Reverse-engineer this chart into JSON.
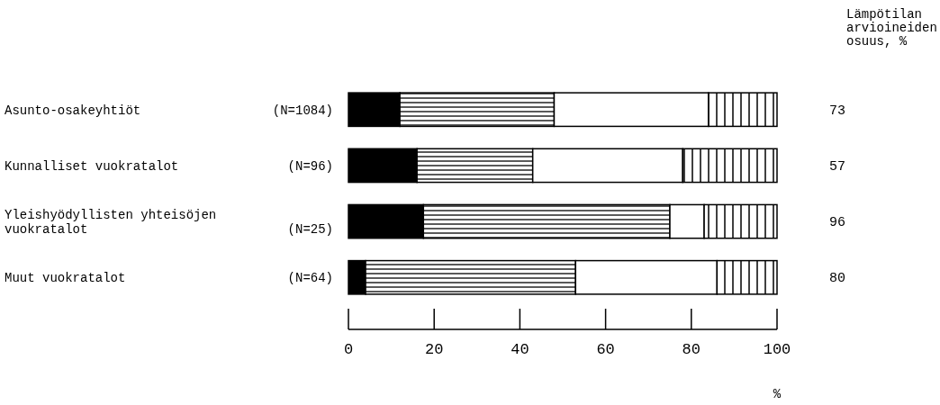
{
  "chart_data": {
    "type": "bar",
    "orientation": "horizontal",
    "stacked": true,
    "categories": [
      "Asunto-osakeyhtiöt (N=1084)",
      "Kunnalliset vuokratalot (N=96)",
      "Yleishyödyllisten yhteisöjen\nvuokratalot (N=25)",
      "Muut vuokratalot (N=64)"
    ],
    "series": [
      {
        "color": "#000000",
        "values": [
          12,
          16,
          17.5,
          4
        ]
      },
      {
        "color": "#000000",
        "values": [
          36,
          27,
          57.5,
          49
        ]
      },
      {
        "color": "#ffffff",
        "values": [
          36,
          35,
          8,
          33
        ]
      },
      {
        "color": "#000000",
        "values": [
          16,
          22,
          17,
          14
        ]
      }
    ],
    "xlim": [
      0,
      100
    ],
    "xticks": [
      0,
      20,
      40,
      60,
      80,
      100
    ],
    "xlabel": "%",
    "grid": false,
    "annotations": [
      "Lämpötilan\narvioineiden\nosuus, %",
      "73",
      "57",
      "96",
      "80"
    ]
  }
}
